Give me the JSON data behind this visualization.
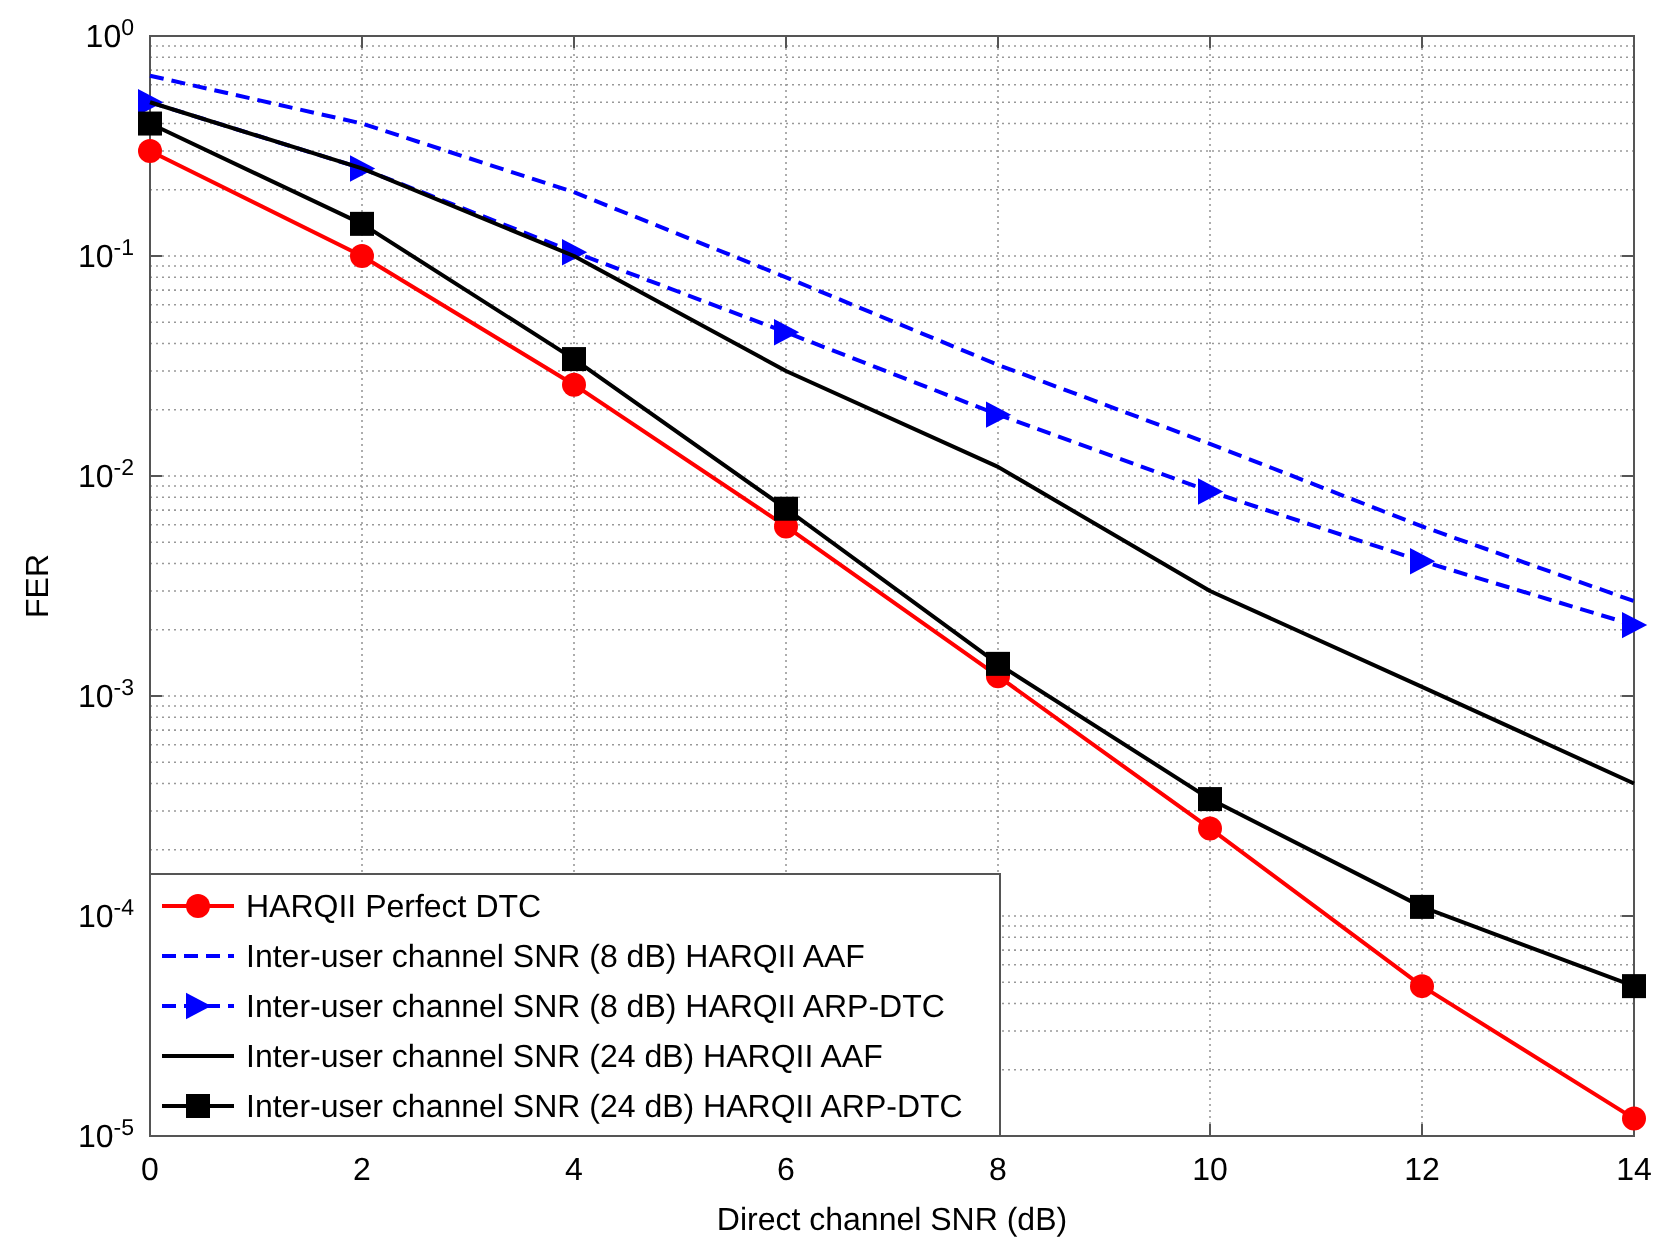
{
  "chart_data": {
    "type": "line",
    "xlabel": "Direct channel SNR (dB)",
    "ylabel": "FER",
    "log": "y",
    "grid": true,
    "legend": "bottom left",
    "x": [
      0,
      2,
      4,
      6,
      8,
      10,
      12,
      14
    ],
    "xlim": [
      0,
      14
    ],
    "xticks": [
      0,
      2,
      4,
      6,
      8,
      10,
      12,
      14
    ],
    "ylim": [
      1e-05,
      1
    ],
    "yticks": [
      {
        "value": 1e-05,
        "label": "10$^{-5}$"
      },
      {
        "value": 0.0001,
        "label": "10$^{-4}$"
      },
      {
        "value": 0.001,
        "label": "10$^{-3}$"
      },
      {
        "value": 0.01,
        "label": "10$^{-2}$"
      },
      {
        "value": 0.1,
        "label": "10$^{-1}$"
      },
      {
        "value": 1,
        "label": "10$^{0}$"
      }
    ],
    "series": [
      {
        "name": "HARQII Perfect DTC",
        "color": "#ff0000",
        "marker": "circle",
        "line_style": "solid",
        "values": [
          0.3,
          0.1,
          0.026,
          0.0059,
          0.00123,
          0.00025,
          4.8e-05,
          1.2e-05
        ]
      },
      {
        "name": "Inter-user channel SNR (8 dB) HARQII AAF",
        "color": "#0000ff",
        "marker": "none",
        "line_style": "dashed",
        "values": [
          0.66,
          0.4,
          0.195,
          0.08,
          0.032,
          0.014,
          0.0059,
          0.0027
        ]
      },
      {
        "name": "Inter-user channel SNR (8 dB) HARQII ARP-DTC",
        "color": "#0000ff",
        "marker": "triangle",
        "line_style": "dashed",
        "values": [
          0.5,
          0.25,
          0.104,
          0.045,
          0.019,
          0.0085,
          0.0041,
          0.0021
        ]
      },
      {
        "name": "Inter-user channel SNR (24 dB) HARQII AAF",
        "color": "#000000",
        "marker": "none",
        "line_style": "solid",
        "values": [
          0.5,
          0.25,
          0.1,
          0.03,
          0.011,
          0.003,
          0.0011,
          0.0004
        ]
      },
      {
        "name": "Inter-user channel SNR (24 dB) HARQII ARP-DTC",
        "color": "#000000",
        "marker": "square",
        "line_style": "solid",
        "values": [
          0.4,
          0.14,
          0.034,
          0.0071,
          0.0014,
          0.00034,
          0.00011,
          4.8e-05
        ]
      }
    ]
  }
}
